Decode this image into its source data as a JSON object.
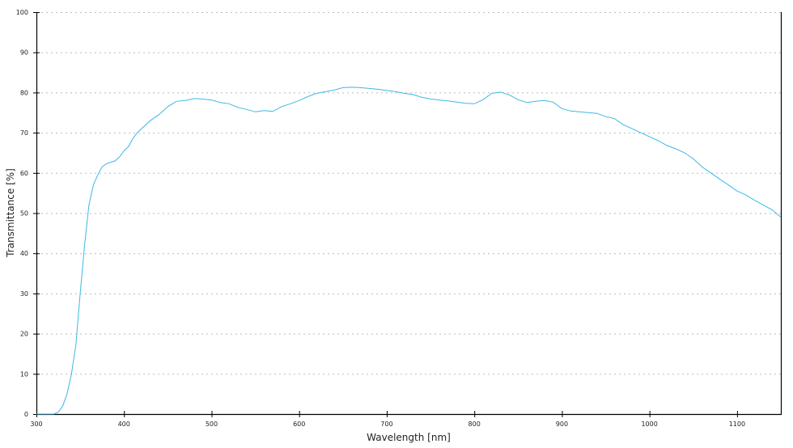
{
  "chart_data": {
    "type": "line",
    "title": "",
    "xlabel": "Wavelength [nm]",
    "ylabel": "Transmittance [%]",
    "xlim": [
      300,
      1150
    ],
    "ylim": [
      0,
      100
    ],
    "xticks": [
      300,
      400,
      500,
      600,
      700,
      800,
      900,
      1000,
      1100
    ],
    "yticks": [
      0,
      10,
      20,
      30,
      40,
      50,
      60,
      70,
      80,
      90,
      100
    ],
    "grid": "horizontal dotted",
    "line_color": "#3cb8e6",
    "grid_color": "#bbbbbb",
    "x": [
      300,
      320,
      325,
      330,
      335,
      340,
      345,
      350,
      355,
      360,
      365,
      370,
      375,
      380,
      390,
      395,
      400,
      405,
      410,
      415,
      420,
      430,
      440,
      450,
      460,
      470,
      480,
      490,
      500,
      510,
      520,
      530,
      540,
      550,
      560,
      570,
      580,
      590,
      600,
      610,
      620,
      630,
      640,
      650,
      660,
      670,
      680,
      690,
      700,
      710,
      720,
      730,
      740,
      750,
      760,
      770,
      780,
      790,
      800,
      810,
      820,
      830,
      840,
      850,
      860,
      870,
      880,
      890,
      900,
      910,
      920,
      930,
      940,
      950,
      960,
      970,
      980,
      990,
      1000,
      1010,
      1020,
      1030,
      1040,
      1050,
      1060,
      1070,
      1080,
      1090,
      1100,
      1110,
      1120,
      1130,
      1140,
      1150
    ],
    "y": [
      0,
      0,
      0.5,
      2,
      5,
      10,
      17,
      30,
      42,
      52,
      57,
      59.5,
      61.5,
      62.3,
      63,
      64,
      65.5,
      66.5,
      68.5,
      70,
      71,
      73,
      74.5,
      76.5,
      77.8,
      78,
      78.5,
      78.4,
      78.1,
      77.5,
      77.2,
      76.3,
      75.8,
      75.2,
      75.5,
      75.3,
      76.5,
      77.2,
      78,
      79,
      79.8,
      80.2,
      80.6,
      81.2,
      81.3,
      81.2,
      81,
      80.8,
      80.5,
      80.2,
      79.8,
      79.5,
      78.8,
      78.4,
      78.1,
      77.9,
      77.6,
      77.3,
      77.2,
      78.2,
      79.8,
      80.1,
      79.4,
      78.2,
      77.5,
      77.8,
      78,
      77.6,
      76,
      75.4,
      75.2,
      75,
      74.8,
      74,
      73.5,
      72,
      71,
      70,
      69,
      68,
      66.8,
      66,
      65,
      63.5,
      61.5,
      60,
      58.5,
      57,
      55.5,
      54.5,
      53.2,
      52,
      50.8,
      49
    ]
  }
}
